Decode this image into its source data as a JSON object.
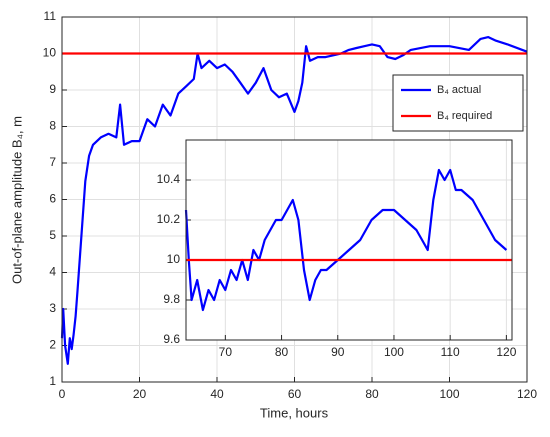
{
  "chart_data": [
    {
      "type": "line",
      "xlabel": "Time, hours",
      "ylabel": "Out-of-plane amplitude B₄, m",
      "xlim": [
        0,
        120
      ],
      "xticks": [
        0,
        20,
        40,
        60,
        80,
        100,
        120
      ],
      "ylim": [
        1,
        11
      ],
      "yticks": [
        1,
        2,
        3,
        4,
        5,
        6,
        7,
        8,
        9,
        10,
        11
      ],
      "grid": true,
      "legend": "upper right",
      "series": [
        {
          "name": "B₄ actual",
          "color": "#0000ff",
          "x": [
            0,
            0.3,
            0.8,
            1.5,
            2,
            2.5,
            3,
            3.5,
            4,
            5,
            6,
            7,
            8,
            10,
            12,
            14,
            15,
            16,
            18,
            20,
            22,
            24,
            26,
            28,
            30,
            32,
            34,
            35,
            36,
            38,
            40,
            42,
            44,
            46,
            48,
            50,
            52,
            54,
            56,
            58,
            60,
            61,
            62,
            63,
            64,
            66,
            68,
            70,
            72,
            74,
            76,
            78,
            80,
            82,
            84,
            86,
            88,
            90,
            95,
            100,
            105,
            108,
            110,
            112,
            115,
            120
          ],
          "values": [
            2.2,
            3.0,
            2.0,
            1.5,
            2.2,
            1.9,
            2.3,
            2.8,
            3.5,
            5.0,
            6.5,
            7.2,
            7.5,
            7.7,
            7.8,
            7.7,
            8.6,
            7.5,
            7.6,
            7.6,
            8.2,
            8.0,
            8.6,
            8.3,
            8.9,
            9.1,
            9.3,
            10.0,
            9.6,
            9.8,
            9.6,
            9.7,
            9.5,
            9.2,
            8.9,
            9.2,
            9.6,
            9.0,
            8.8,
            8.9,
            8.4,
            8.7,
            9.2,
            10.2,
            9.8,
            9.9,
            9.9,
            9.95,
            10.0,
            10.1,
            10.15,
            10.2,
            10.25,
            10.2,
            9.9,
            9.85,
            9.95,
            10.1,
            10.2,
            10.2,
            10.1,
            10.4,
            10.45,
            10.35,
            10.25,
            10.05
          ]
        },
        {
          "name": "B₄ required",
          "color": "#ff0000",
          "x": [
            0,
            120
          ],
          "values": [
            10,
            10
          ]
        }
      ]
    },
    {
      "type": "line",
      "xlim": [
        63,
        121
      ],
      "xticks": [
        70,
        80,
        90,
        100,
        110,
        120
      ],
      "ylim": [
        9.6,
        10.6
      ],
      "yticks": [
        9.6,
        9.8,
        10,
        10.2,
        10.4
      ],
      "grid": true,
      "series": [
        {
          "color": "#0000ff",
          "x": [
            63,
            63.5,
            64,
            65,
            66,
            67,
            68,
            69,
            70,
            71,
            72,
            73,
            74,
            75,
            76,
            77,
            78,
            79,
            80,
            81,
            82,
            83,
            84,
            85,
            86,
            87,
            88,
            90,
            92,
            94,
            96,
            98,
            100,
            102,
            104,
            105,
            106,
            107,
            108,
            109,
            110,
            111,
            112,
            114,
            116,
            118,
            120
          ],
          "values": [
            10.25,
            10.0,
            9.8,
            9.9,
            9.75,
            9.85,
            9.8,
            9.9,
            9.85,
            9.95,
            9.9,
            10.0,
            9.9,
            10.05,
            10.0,
            10.1,
            10.15,
            10.2,
            10.2,
            10.25,
            10.3,
            10.2,
            9.95,
            9.8,
            9.9,
            9.95,
            9.95,
            10.0,
            10.05,
            10.1,
            10.2,
            10.25,
            10.25,
            10.2,
            10.15,
            10.1,
            10.05,
            10.3,
            10.45,
            10.4,
            10.45,
            10.35,
            10.35,
            10.3,
            10.2,
            10.1,
            10.05
          ]
        },
        {
          "color": "#ff0000",
          "x": [
            63,
            121
          ],
          "values": [
            10,
            10
          ]
        }
      ]
    }
  ]
}
